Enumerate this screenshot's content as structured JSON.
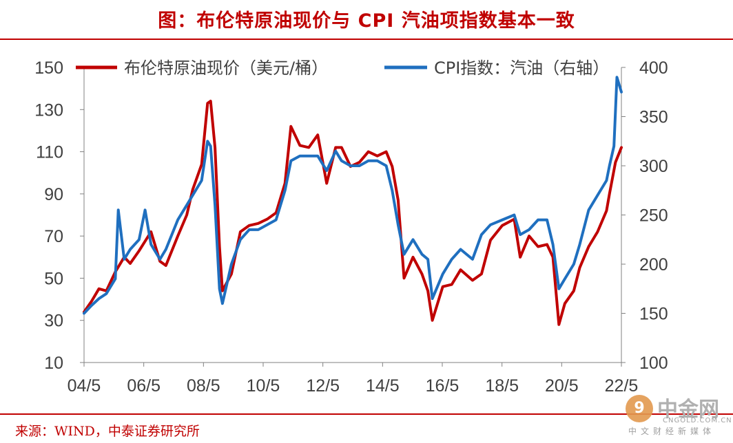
{
  "page_title": "图：布伦特原油现价与 CPI 汽油项指数基本一致",
  "source_note": "来源：WIND，中泰证券研究所",
  "watermark": {
    "logo_char": "9",
    "name": "中金网",
    "url": "CNGOLD.COM.CN",
    "subtitle": "中文财经新媒体"
  },
  "colors": {
    "title": "#c00000",
    "brent": "#c00000",
    "cpi": "#1f6fbf",
    "axis": "#808080"
  },
  "chart_data": {
    "type": "line",
    "title": "布伦特原油现价与 CPI 汽油项指数基本一致",
    "xlabel": "",
    "x_ticks": [
      "04/5",
      "06/5",
      "08/5",
      "10/5",
      "12/5",
      "14/5",
      "16/5",
      "18/5",
      "20/5",
      "22/5"
    ],
    "x_range": [
      2004.35,
      2022.4
    ],
    "y_left": {
      "range": [
        10,
        150
      ],
      "ticks": [
        10,
        30,
        50,
        70,
        90,
        110,
        130,
        150
      ]
    },
    "y_right": {
      "range": [
        100,
        400
      ],
      "ticks": [
        100,
        150,
        200,
        250,
        300,
        350,
        400
      ]
    },
    "legend": "top",
    "series": [
      {
        "name": "布伦特原油现价（美元/桶）",
        "axis": "left",
        "color": "#c00000",
        "t": [
          2004.35,
          2004.6,
          2004.85,
          2005.1,
          2005.4,
          2005.7,
          2005.9,
          2006.2,
          2006.6,
          2006.9,
          2007.1,
          2007.5,
          2007.8,
          2008.0,
          2008.3,
          2008.5,
          2008.6,
          2008.75,
          2008.9,
          2009.0,
          2009.3,
          2009.6,
          2009.9,
          2010.2,
          2010.5,
          2010.8,
          2011.1,
          2011.3,
          2011.6,
          2011.9,
          2012.2,
          2012.5,
          2012.8,
          2013.0,
          2013.3,
          2013.6,
          2013.9,
          2014.2,
          2014.5,
          2014.7,
          2014.9,
          2015.1,
          2015.4,
          2015.7,
          2015.9,
          2016.05,
          2016.4,
          2016.7,
          2017.0,
          2017.4,
          2017.7,
          2018.0,
          2018.4,
          2018.8,
          2019.0,
          2019.3,
          2019.6,
          2019.9,
          2020.1,
          2020.3,
          2020.5,
          2020.8,
          2021.0,
          2021.3,
          2021.6,
          2021.9,
          2022.0,
          2022.2,
          2022.4
        ],
        "values": [
          34,
          39,
          45,
          44,
          53,
          60,
          57,
          63,
          72,
          58,
          56,
          70,
          80,
          92,
          104,
          133,
          134,
          112,
          65,
          44,
          52,
          72,
          75,
          76,
          78,
          81,
          95,
          122,
          113,
          112,
          118,
          95,
          112,
          112,
          103,
          105,
          110,
          108,
          110,
          103,
          87,
          50,
          60,
          52,
          44,
          30,
          46,
          47,
          54,
          49,
          52,
          68,
          75,
          78,
          60,
          70,
          65,
          66,
          60,
          28,
          38,
          44,
          55,
          65,
          72,
          82,
          90,
          105,
          112
        ]
      },
      {
        "name": "CPI指数：汽油（右轴）",
        "axis": "right",
        "color": "#1f6fbf",
        "t": [
          2004.35,
          2004.6,
          2004.85,
          2005.1,
          2005.4,
          2005.5,
          2005.7,
          2005.9,
          2006.2,
          2006.4,
          2006.6,
          2006.9,
          2007.1,
          2007.5,
          2007.8,
          2008.0,
          2008.3,
          2008.5,
          2008.6,
          2008.75,
          2008.9,
          2009.0,
          2009.3,
          2009.6,
          2009.9,
          2010.2,
          2010.5,
          2010.8,
          2011.1,
          2011.3,
          2011.6,
          2011.9,
          2012.2,
          2012.5,
          2012.8,
          2013.0,
          2013.3,
          2013.6,
          2013.9,
          2014.2,
          2014.5,
          2014.7,
          2014.9,
          2015.1,
          2015.4,
          2015.7,
          2015.9,
          2016.05,
          2016.4,
          2016.7,
          2017.0,
          2017.4,
          2017.7,
          2018.0,
          2018.4,
          2018.8,
          2019.0,
          2019.3,
          2019.6,
          2019.9,
          2020.1,
          2020.3,
          2020.5,
          2020.8,
          2021.0,
          2021.3,
          2021.6,
          2021.9,
          2022.0,
          2022.15,
          2022.25,
          2022.4
        ],
        "values": [
          150,
          158,
          165,
          170,
          185,
          255,
          205,
          215,
          225,
          255,
          220,
          205,
          215,
          245,
          260,
          270,
          285,
          325,
          320,
          260,
          175,
          160,
          200,
          225,
          235,
          235,
          240,
          245,
          275,
          305,
          310,
          310,
          310,
          295,
          315,
          305,
          300,
          300,
          305,
          305,
          300,
          275,
          240,
          210,
          225,
          210,
          205,
          165,
          190,
          205,
          215,
          205,
          230,
          240,
          245,
          250,
          230,
          235,
          245,
          245,
          220,
          175,
          185,
          200,
          220,
          255,
          270,
          285,
          300,
          320,
          390,
          375
        ]
      }
    ]
  }
}
